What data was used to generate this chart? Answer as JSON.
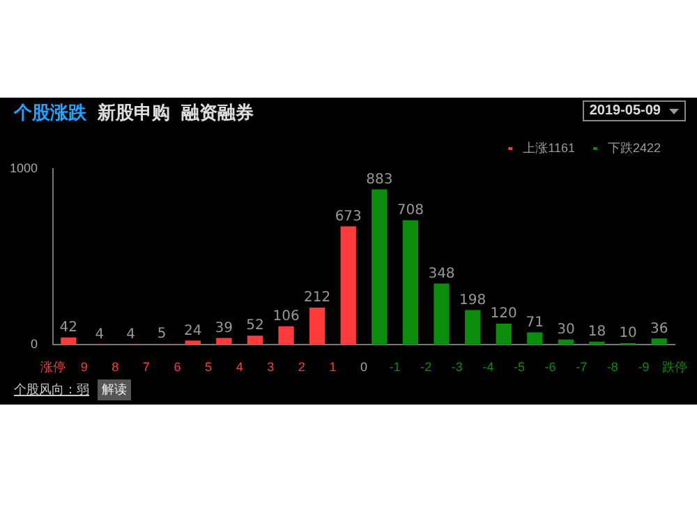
{
  "chart_data": {
    "type": "histogram",
    "bins": [
      10,
      9,
      8,
      7,
      6,
      5,
      4,
      3,
      2,
      1,
      0,
      -1,
      -2,
      -3,
      -4,
      -5,
      -6,
      -7,
      -8,
      -9,
      -10
    ],
    "series": [
      {
        "name": "上涨1161",
        "color": "#ff3b3b",
        "values": [
          42,
          4,
          4,
          5,
          24,
          39,
          52,
          106,
          212,
          673,
          null,
          null,
          null,
          null,
          null,
          null,
          null,
          null,
          null,
          null
        ]
      },
      {
        "name": "下跌2422",
        "color": "#0c8c0c",
        "values": [
          null,
          null,
          null,
          null,
          null,
          null,
          null,
          null,
          null,
          null,
          883,
          708,
          348,
          198,
          120,
          71,
          30,
          18,
          10,
          36
        ]
      }
    ],
    "xlim": [
      10,
      -10
    ],
    "xticks": [
      {
        "value": 10,
        "label": "涨停"
      },
      9,
      8,
      7,
      6,
      5,
      4,
      3,
      2,
      1,
      0,
      -1,
      -2,
      -3,
      -4,
      -5,
      -6,
      -7,
      -8,
      -9,
      {
        "value": -10,
        "label": "跌停"
      }
    ],
    "ylim": [
      0,
      1000
    ],
    "yticks": [
      0,
      1000
    ],
    "grid": false,
    "legend": "top right",
    "data_labels": true,
    "annotations": [
      "个股涨跌",
      "新股申购",
      "融资融券",
      "2019-05-09",
      "个股风向：弱",
      "解读"
    ]
  }
}
